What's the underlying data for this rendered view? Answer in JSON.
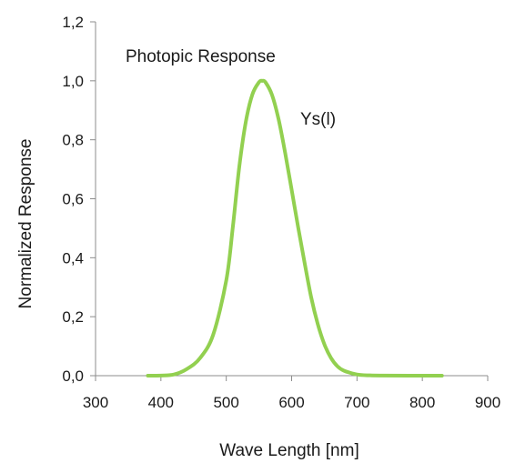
{
  "chart_data": {
    "type": "line",
    "title": "",
    "xlabel": "Wave Length [nm]",
    "ylabel": "Normalized Response",
    "xlim": [
      300,
      900
    ],
    "ylim": [
      0,
      1.2
    ],
    "x_ticks": [
      300,
      400,
      500,
      600,
      700,
      800,
      900
    ],
    "x_tick_labels": [
      "300",
      "400",
      "500",
      "600",
      "700",
      "800",
      "900"
    ],
    "y_ticks": [
      0,
      0.2,
      0.4,
      0.6,
      0.8,
      1.0,
      1.2
    ],
    "y_tick_labels": [
      "0,0",
      "0,2",
      "0,4",
      "0,6",
      "0,8",
      "1,0",
      "1,2"
    ],
    "grid": false,
    "annotations": [
      {
        "text": "Photopic Response"
      },
      {
        "text": "Ys(l)"
      }
    ],
    "series": [
      {
        "color": "#92d050",
        "x": [
          380,
          400,
          420,
          440,
          460,
          480,
          500,
          510,
          520,
          530,
          540,
          550,
          555,
          560,
          570,
          580,
          590,
          600,
          610,
          620,
          630,
          640,
          650,
          660,
          670,
          680,
          700,
          720,
          740,
          780,
          830
        ],
        "y": [
          0.0,
          0.0004,
          0.004,
          0.023,
          0.06,
          0.139,
          0.323,
          0.503,
          0.71,
          0.862,
          0.954,
          0.995,
          1.0,
          0.995,
          0.952,
          0.87,
          0.757,
          0.631,
          0.503,
          0.381,
          0.265,
          0.175,
          0.107,
          0.061,
          0.032,
          0.017,
          0.004,
          0.001,
          0.0003,
          0.0,
          0.0
        ]
      }
    ]
  }
}
